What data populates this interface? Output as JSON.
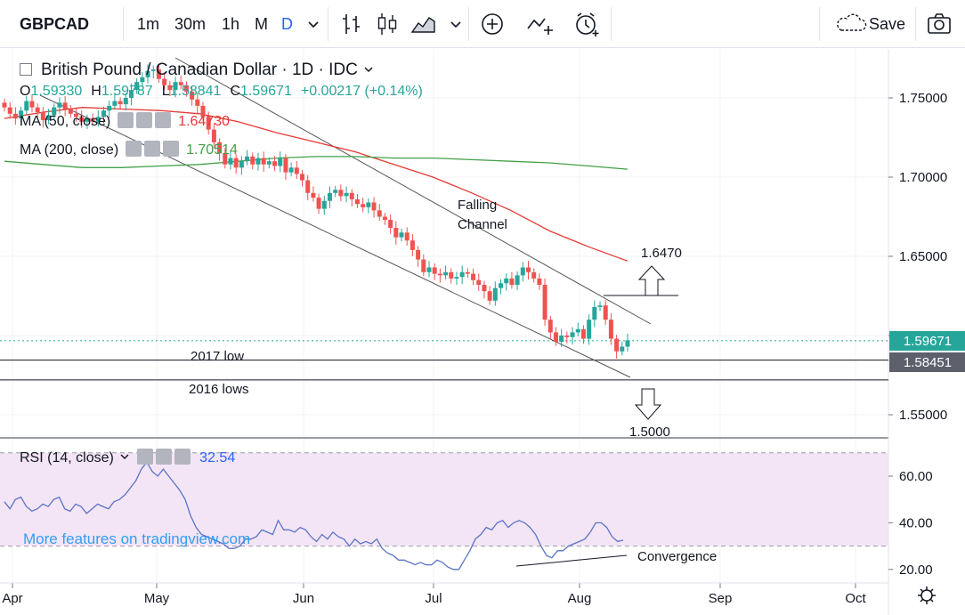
{
  "toolbar": {
    "symbol": "GBPCAD",
    "intervals": [
      "1m",
      "30m",
      "1h",
      "M",
      "D"
    ],
    "active_interval": "D",
    "save_label": "Save"
  },
  "legend": {
    "title": "British Pound / Canadian Dollar · 1D · IDC",
    "ohlc": [
      {
        "label": "O",
        "value": "1.59330"
      },
      {
        "label": "H",
        "value": "1.59787"
      },
      {
        "label": "L",
        "value": "1.58841"
      },
      {
        "label": "C",
        "value": "1.59671"
      }
    ],
    "change": "+0.00217 (+0.14%)",
    "ma50": {
      "label": "MA (50, close)",
      "value": "1.64730",
      "color": "#e53935"
    },
    "ma200": {
      "label": "MA (200, close)",
      "value": "1.70514",
      "color": "#43a047"
    },
    "rsi": {
      "label": "RSI (14, close)",
      "value": "32.54",
      "color": "#2962ff"
    },
    "watermark": "More features on tradingview.com"
  },
  "colors": {
    "up": "#26a69a",
    "down": "#ef5350",
    "rsi_line": "#5b73c6",
    "rsi_band": "#f3e5f5",
    "channel": "#555555",
    "last_price_bg": "#26a69a",
    "level_bg": "#5d606b"
  },
  "annotations": {
    "falling_channel": [
      "Falling",
      "Channel"
    ],
    "upper_target": "1.6470",
    "lower_target": "1.5000",
    "low_2017": "2017 low",
    "lows_2016": "2016 lows",
    "convergence": "Convergence"
  },
  "chart_data": [
    {
      "type": "candlestick",
      "title": "British Pound / Canadian Dollar · 1D · IDC",
      "ylim": [
        1.525,
        1.785
      ],
      "y_ticks": [
        "1.75000",
        "1.70000",
        "1.65000",
        "1.60000",
        "1.55000"
      ],
      "x_ticks": [
        "Apr",
        "May",
        "Jun",
        "Jul",
        "Aug",
        "Sep",
        "Oct"
      ],
      "last_price": "1.59671",
      "level_price": "1.58451",
      "ohlc_last": {
        "open": 1.5933,
        "high": 1.59787,
        "low": 1.58841,
        "close": 1.59671
      },
      "approx_closes": [
        1.744,
        1.74,
        1.737,
        1.742,
        1.748,
        1.744,
        1.741,
        1.736,
        1.739,
        1.744,
        1.747,
        1.743,
        1.74,
        1.738,
        1.735,
        1.737,
        1.735,
        1.738,
        1.742,
        1.745,
        1.748,
        1.746,
        1.75,
        1.755,
        1.76,
        1.763,
        1.767,
        1.768,
        1.762,
        1.758,
        1.755,
        1.76,
        1.758,
        1.754,
        1.749,
        1.745,
        1.738,
        1.73,
        1.722,
        1.715,
        1.708,
        1.712,
        1.706,
        1.71,
        1.713,
        1.708,
        1.712,
        1.708,
        1.71,
        1.707,
        1.712,
        1.703,
        1.706,
        1.702,
        1.698,
        1.69,
        1.687,
        1.68,
        1.685,
        1.69,
        1.692,
        1.688,
        1.69,
        1.686,
        1.683,
        1.681,
        1.684,
        1.679,
        1.675,
        1.673,
        1.668,
        1.662,
        1.665,
        1.66,
        1.654,
        1.648,
        1.64,
        1.643,
        1.639,
        1.638,
        1.64,
        1.636,
        1.637,
        1.64,
        1.639,
        1.635,
        1.632,
        1.628,
        1.622,
        1.63,
        1.633,
        1.636,
        1.632,
        1.638,
        1.643,
        1.64,
        1.636,
        1.632,
        1.61,
        1.602,
        1.596,
        1.6,
        1.599,
        1.602,
        1.604,
        1.598,
        1.61,
        1.618,
        1.619,
        1.61,
        1.598,
        1.59,
        1.593,
        1.597
      ],
      "series": [
        {
          "name": "MA (50, close)",
          "values": [
            1.737,
            1.741,
            1.744,
            1.743,
            1.742,
            1.74,
            1.735,
            1.728,
            1.722,
            1.716,
            1.708,
            1.7,
            1.69,
            1.679,
            1.666,
            1.656,
            1.647
          ]
        },
        {
          "name": "MA (200, close)",
          "values": [
            1.71,
            1.708,
            1.706,
            1.706,
            1.707,
            1.708,
            1.71,
            1.712,
            1.713,
            1.713,
            1.712,
            1.712,
            1.711,
            1.71,
            1.709,
            1.707,
            1.705
          ]
        }
      ]
    },
    {
      "type": "line",
      "title": "RSI (14, close)",
      "ylim": [
        15,
        70
      ],
      "y_ticks": [
        "60.00",
        "40.00",
        "20.00"
      ],
      "band": [
        30,
        70
      ],
      "values": [
        49,
        46,
        50,
        51,
        47,
        45,
        46,
        48,
        47,
        50,
        51,
        46,
        45,
        48,
        47,
        44,
        46,
        48,
        47,
        46,
        49,
        50,
        52,
        55,
        58,
        63,
        66,
        62,
        60,
        63,
        60,
        57,
        54,
        50,
        43,
        38,
        35,
        34,
        33,
        32,
        31,
        29,
        29,
        30,
        33,
        33,
        34,
        37,
        36,
        35,
        41,
        37,
        37,
        36,
        38,
        37,
        34,
        32,
        35,
        33,
        36,
        34,
        33,
        30,
        33,
        31,
        32,
        31,
        33,
        29,
        27,
        26,
        24,
        24,
        23,
        22,
        23,
        22,
        22,
        24,
        23,
        21,
        20,
        20,
        24,
        28,
        33,
        35,
        38,
        37,
        40,
        41,
        38,
        40,
        41,
        40,
        38,
        35,
        30,
        26,
        25,
        28,
        28,
        30,
        31,
        32,
        33,
        36,
        40,
        40,
        38,
        34,
        32,
        32.54
      ]
    }
  ]
}
